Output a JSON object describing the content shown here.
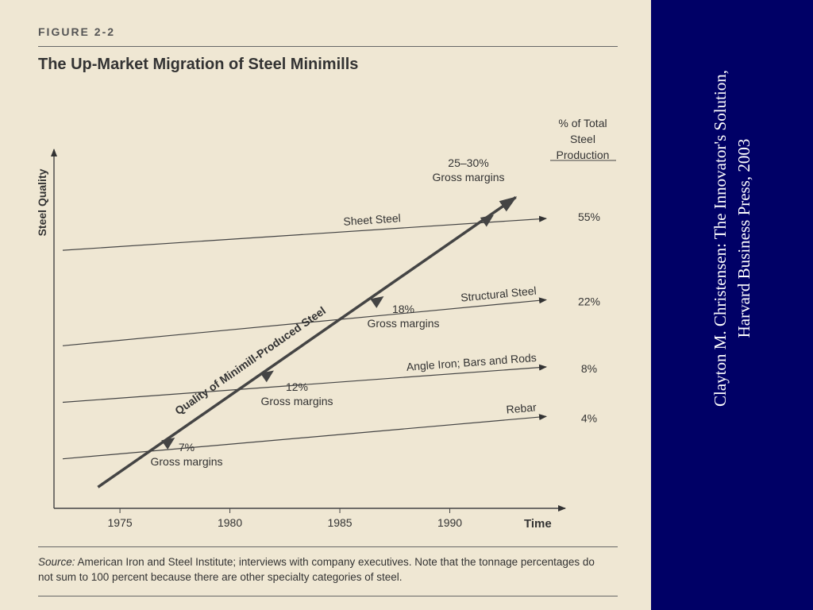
{
  "figure_label": "FIGURE 2-2",
  "figure_title": "The Up-Market Migration of Steel Minimills",
  "chart_data": {
    "type": "diagram",
    "y_axis_label": "Steel Quality",
    "x_axis_label": "Time",
    "x_ticks": [
      1975,
      1980,
      1985,
      1990
    ],
    "x_range": [
      1972,
      1995
    ],
    "y_range": [
      0,
      100
    ],
    "share_header": [
      "% of Total",
      "Steel",
      "Production"
    ],
    "tiers": [
      {
        "name": "Sheet Steel",
        "share": "55%",
        "y_start": 73,
        "y_end": 82
      },
      {
        "name": "Structural Steel",
        "share": "22%",
        "y_start": 46,
        "y_end": 59
      },
      {
        "name": "Angle Iron; Bars and Rods",
        "share": "8%",
        "y_start": 30,
        "y_end": 40
      },
      {
        "name": "Rebar",
        "share": "4%",
        "y_start": 14,
        "y_end": 26
      }
    ],
    "trajectory": {
      "label": "Quality of Minimill-Produced Steel",
      "start": {
        "x": 1974,
        "y": 6
      },
      "end": {
        "x": 1993,
        "y": 88
      },
      "milestones": [
        {
          "x": 1977.5,
          "y": 20,
          "label": [
            "7%",
            "Gross margins"
          ]
        },
        {
          "x": 1982,
          "y": 39,
          "label": [
            "12%",
            "Gross margins"
          ]
        },
        {
          "x": 1987,
          "y": 60,
          "label": [
            "18%",
            "Gross margins"
          ]
        },
        {
          "x": 1992,
          "y": 83,
          "label": [
            "25–30%",
            "Gross margins"
          ]
        }
      ]
    }
  },
  "source": {
    "label": "Source:",
    "text": "American Iron and Steel Institute; interviews with company executives. Note that the tonnage percentages do not sum to 100 percent because there are other specialty categories of steel."
  },
  "credit": {
    "line1": "Clayton M. Christensen: The Innovator's Solution,",
    "line2": "Harvard Business Press, 2003"
  },
  "colors": {
    "sidebar": "#000066",
    "page": "#efe7d3",
    "ink": "#333333"
  }
}
